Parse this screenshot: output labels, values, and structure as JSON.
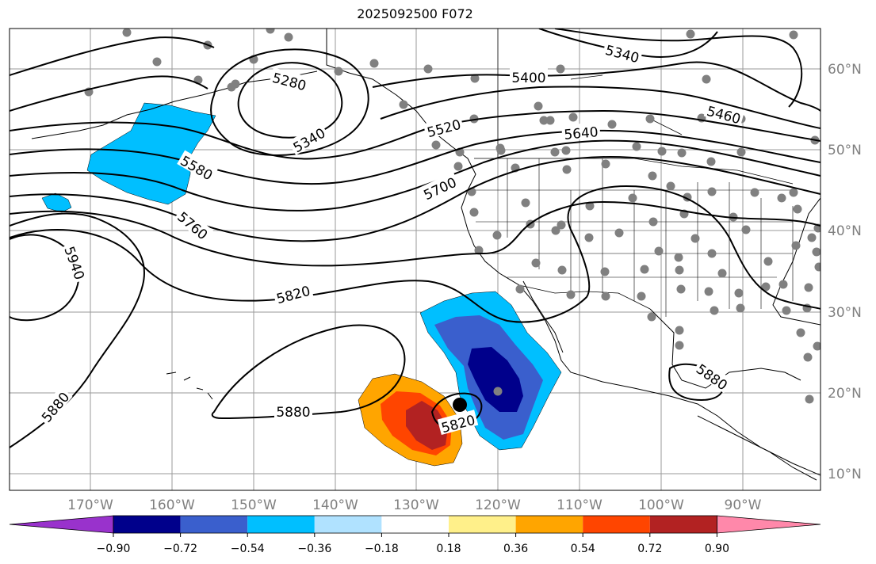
{
  "title": "2025092500 F072",
  "lat_labels": [
    "60°N",
    "50°N",
    "40°N",
    "30°N",
    "20°N",
    "10°N"
  ],
  "lon_labels": [
    "170°W",
    "160°W",
    "150°W",
    "140°W",
    "130°W",
    "120°W",
    "110°W",
    "100°W",
    "90°W"
  ],
  "colorbar": {
    "ticks": [
      "−0.90",
      "−0.72",
      "−0.54",
      "−0.36",
      "−0.18",
      "0.18",
      "0.36",
      "0.54",
      "0.72",
      "0.90"
    ],
    "colors": [
      "#9932cc",
      "#00008b",
      "#3a5fcd",
      "#00bfff",
      "#b0e2ff",
      "#ffffff",
      "#fff08a",
      "#ffa500",
      "#ff4500",
      "#b22222",
      "#ff88aa"
    ]
  },
  "contour_labels": [
    "5280",
    "5340",
    "5340",
    "5400",
    "5460",
    "5520",
    "5580",
    "5640",
    "5700",
    "5760",
    "5820",
    "5820",
    "5880",
    "5880",
    "5880",
    "5940"
  ],
  "anomaly_colors": {
    "positive_1": "#ffa500",
    "positive_2": "#ff4500",
    "positive_3": "#b22222",
    "negative_1": "#00bfff",
    "negative_2": "#3a5fcd",
    "negative_3": "#00008b"
  }
}
